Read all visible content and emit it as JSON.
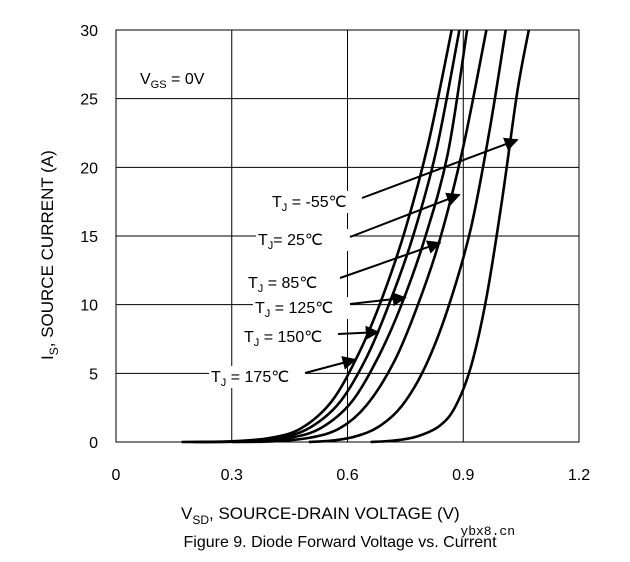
{
  "chart_data": {
    "type": "line",
    "title": "",
    "caption": "Figure 9. Diode Forward Voltage vs. Current",
    "xlabel": "V",
    "xlabel_sub": "SD",
    "xlabel_rest": ", SOURCE-DRAIN VOLTAGE (V)",
    "ylabel": "I",
    "ylabel_sub": "S",
    "ylabel_rest": ", SOURCE CURRENT (A)",
    "xlim": [
      0,
      1.2
    ],
    "ylim": [
      0,
      30
    ],
    "xticks": [
      "0",
      "0.3",
      "0.6",
      "0.9",
      "1.2"
    ],
    "xtick_values": [
      0,
      0.3,
      0.6,
      0.9,
      1.2
    ],
    "yticks": [
      "0",
      "5",
      "10",
      "15",
      "20",
      "25",
      "30"
    ],
    "ytick_values": [
      0,
      5,
      10,
      15,
      20,
      25,
      30
    ],
    "grid": true,
    "condition": {
      "main": "V",
      "sub": "GS",
      "rest": " = 0V"
    },
    "series": [
      {
        "name": "TJ = -55℃",
        "x": [
          0.66,
          0.72,
          0.78,
          0.84,
          0.88,
          0.92,
          0.96,
          1.0,
          1.04,
          1.07
        ],
        "y": [
          0,
          0.1,
          0.4,
          1.2,
          2.6,
          5.5,
          10.5,
          17.5,
          25.5,
          30
        ]
      },
      {
        "name": "TJ = 25℃",
        "x": [
          0.5,
          0.56,
          0.62,
          0.68,
          0.74,
          0.8,
          0.86,
          0.92,
          0.97,
          1.01
        ],
        "y": [
          0,
          0.1,
          0.4,
          1.1,
          2.6,
          5.4,
          9.7,
          15.6,
          23.0,
          30
        ]
      },
      {
        "name": "TJ = 85℃",
        "x": [
          0.3,
          0.4,
          0.5,
          0.58,
          0.65,
          0.72,
          0.78,
          0.84,
          0.9,
          0.96
        ],
        "y": [
          0,
          0.04,
          0.3,
          1.0,
          2.7,
          5.8,
          9.8,
          14.8,
          21.5,
          30
        ]
      },
      {
        "name": "TJ = 125℃",
        "x": [
          0.22,
          0.35,
          0.45,
          0.53,
          0.61,
          0.68,
          0.74,
          0.8,
          0.86,
          0.91
        ],
        "y": [
          0,
          0.05,
          0.3,
          1.0,
          2.9,
          6.2,
          10.0,
          14.8,
          21.0,
          30
        ]
      },
      {
        "name": "TJ = 150℃",
        "x": [
          0.2,
          0.32,
          0.42,
          0.5,
          0.58,
          0.65,
          0.71,
          0.77,
          0.83,
          0.89
        ],
        "y": [
          0,
          0.05,
          0.3,
          1.0,
          2.9,
          6.2,
          10.2,
          15.0,
          21.2,
          30
        ]
      },
      {
        "name": "TJ = 175℃",
        "x": [
          0.17,
          0.3,
          0.4,
          0.48,
          0.56,
          0.63,
          0.69,
          0.75,
          0.81,
          0.87
        ],
        "y": [
          0,
          0.05,
          0.3,
          1.0,
          3.0,
          6.5,
          10.5,
          15.5,
          21.8,
          30
        ]
      }
    ],
    "annotations": [
      {
        "main": "T",
        "sub": "J",
        "rest": " = -55℃",
        "tip": [
          1.04,
          22
        ]
      },
      {
        "main": "T",
        "sub": "J",
        "rest": "= 25℃",
        "tip": [
          0.89,
          18
        ]
      },
      {
        "main": "T",
        "sub": "J",
        "rest": " = 85℃",
        "tip": [
          0.84,
          14.5
        ]
      },
      {
        "main": "T",
        "sub": "J",
        "rest": " = 125℃",
        "tip": [
          0.75,
          10.5
        ]
      },
      {
        "main": "T",
        "sub": "J",
        "rest": " = 150℃",
        "tip": [
          0.68,
          8
        ]
      },
      {
        "main": "T",
        "sub": "J",
        "rest": " = 175℃",
        "tip": [
          0.62,
          6
        ]
      }
    ]
  },
  "watermark": "ybx8.cn"
}
